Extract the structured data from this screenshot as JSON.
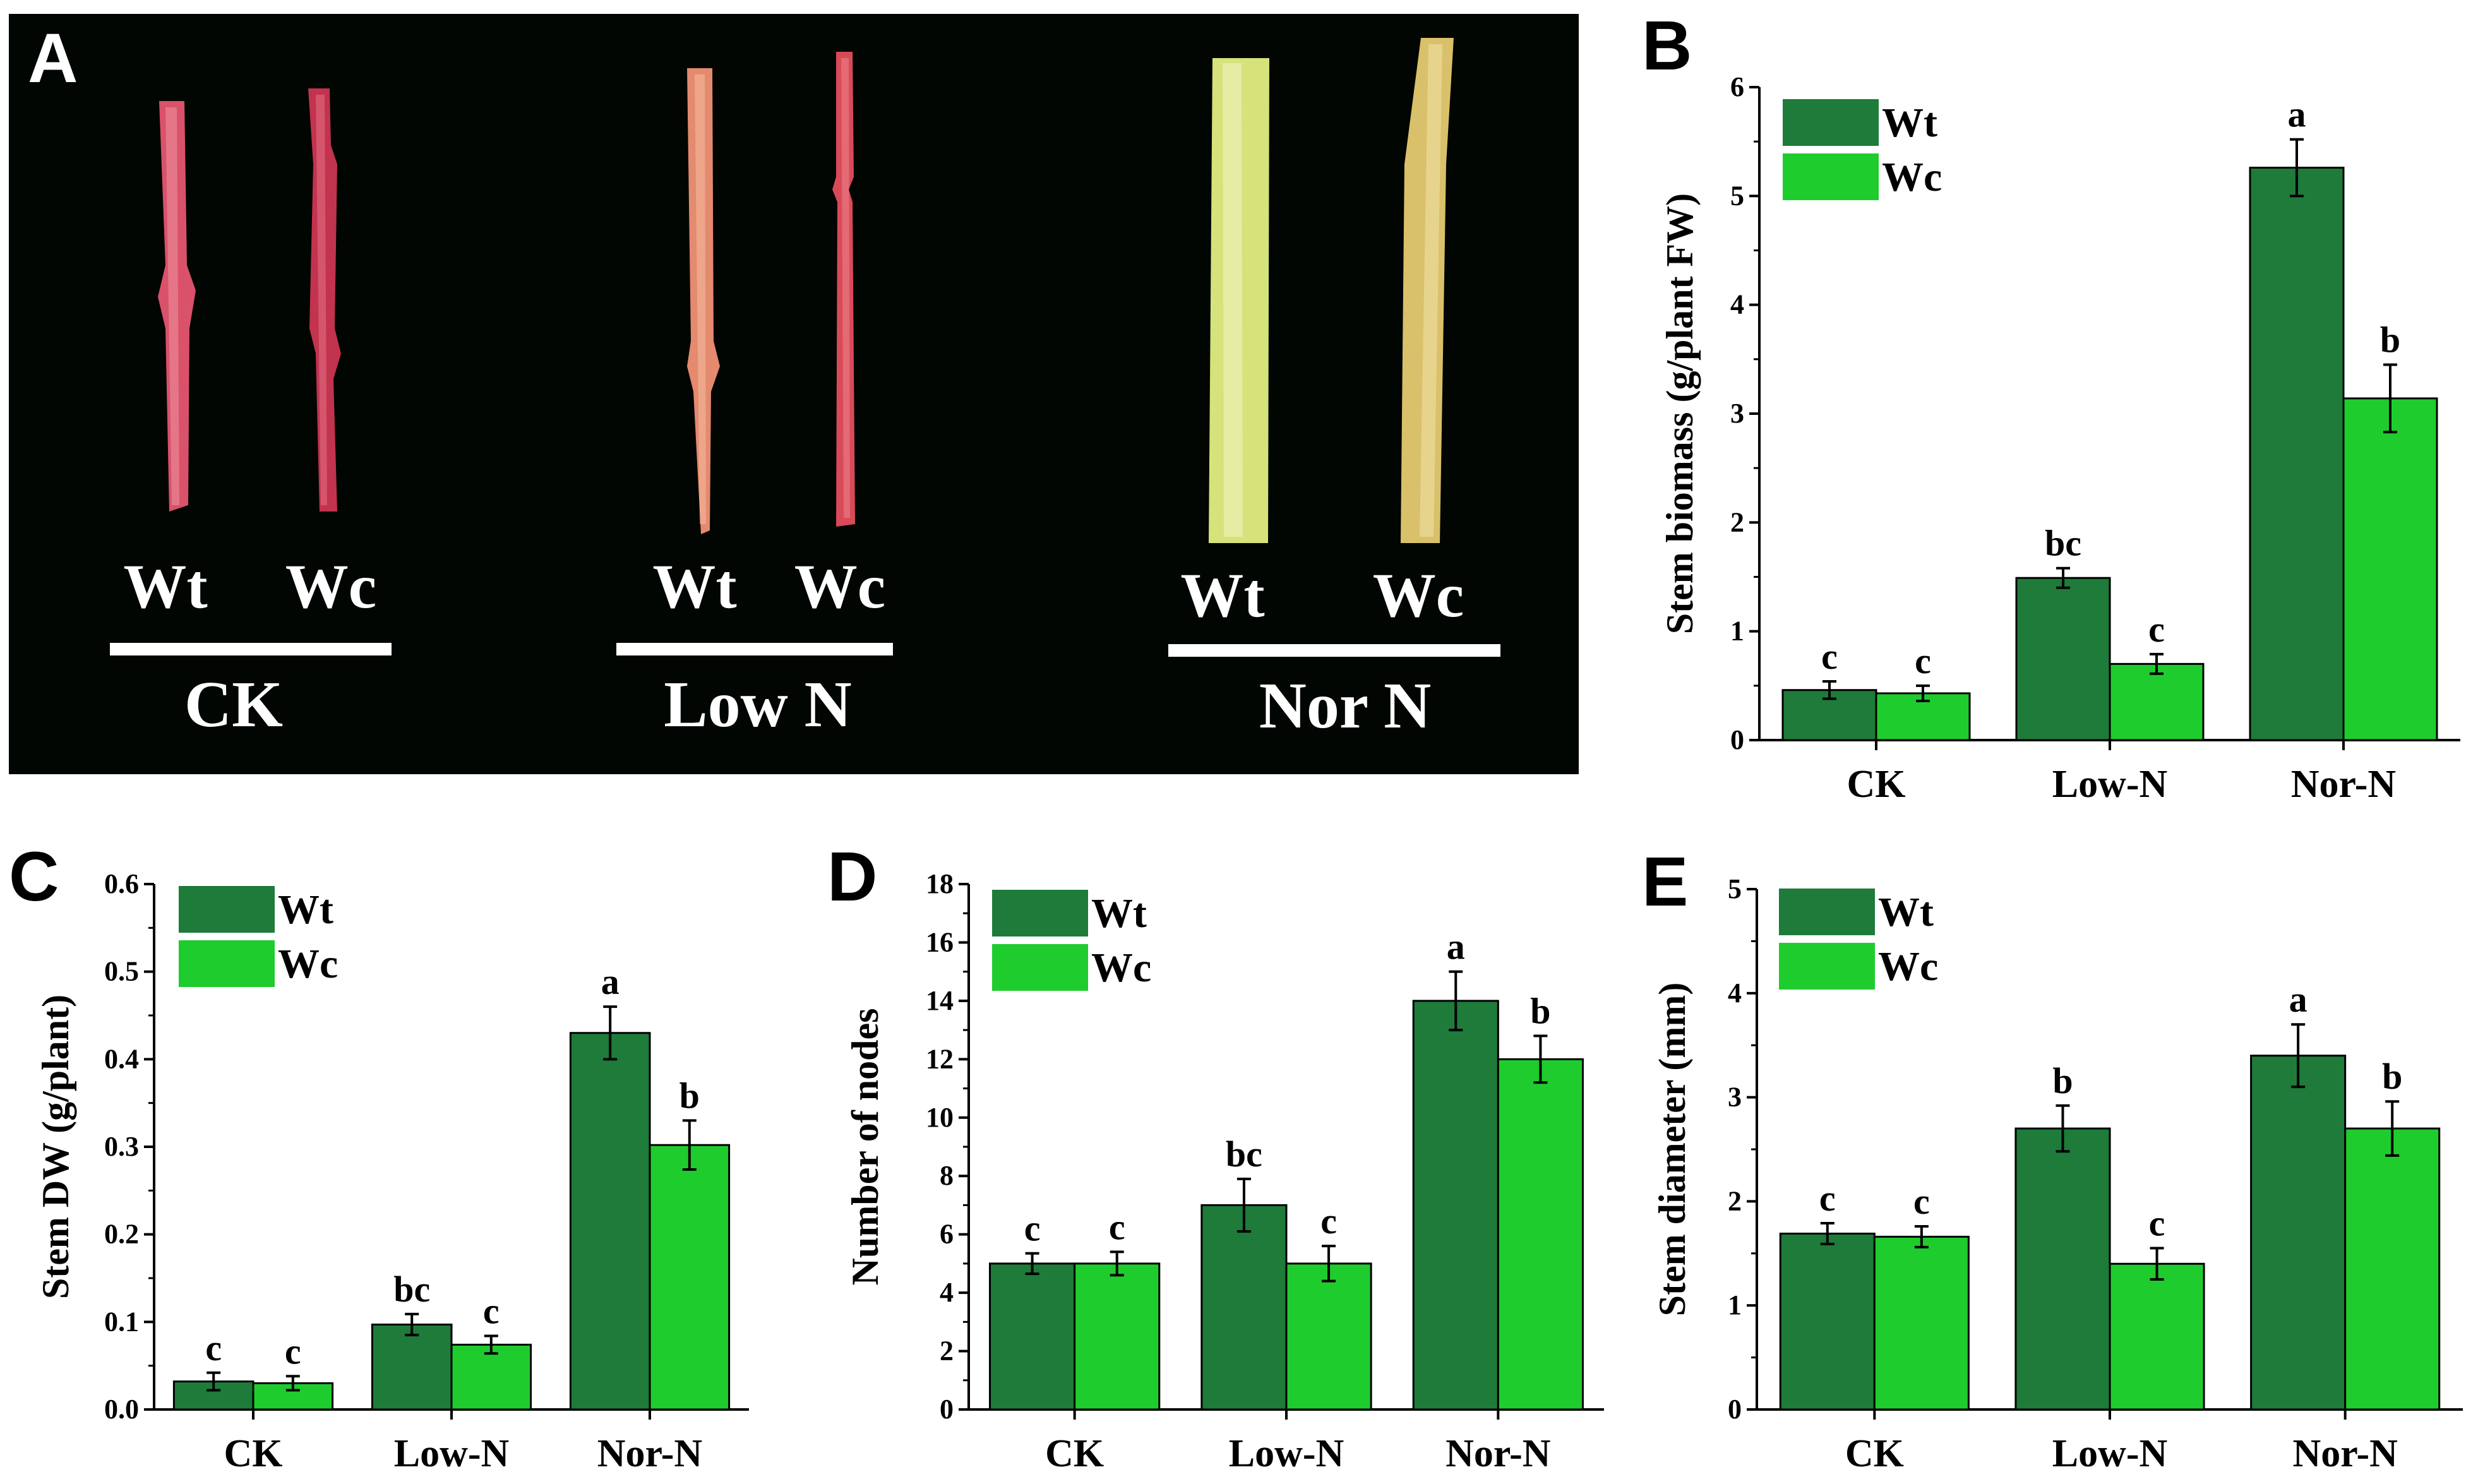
{
  "colors": {
    "wt": "#1E7B3A",
    "wc": "#1FCC2E",
    "photo_bg": "#010603",
    "photo_text": "#ffffff"
  },
  "photo": {
    "panel": "A",
    "groups": [
      {
        "name": "CK",
        "labels": [
          "Wt",
          "Wc"
        ]
      },
      {
        "name": "Low N",
        "labels": [
          "Wt",
          "Wc"
        ]
      },
      {
        "name": "Nor N",
        "labels": [
          "Wt",
          "Wc"
        ]
      }
    ]
  },
  "chart_data": [
    {
      "panel": "B",
      "type": "bar",
      "categories": [
        "CK",
        "Low-N",
        "Nor-N"
      ],
      "ylabel": "Stem biomass (g/plant FW)",
      "ylim": [
        0,
        6
      ],
      "yticks": [
        "0",
        "1",
        "2",
        "3",
        "4",
        "5",
        "6"
      ],
      "ytick_values": [
        0,
        1,
        2,
        3,
        4,
        5,
        6
      ],
      "series": [
        {
          "name": "Wt",
          "values": [
            0.46,
            1.49,
            5.26
          ],
          "errors": [
            0.08,
            0.09,
            0.26
          ],
          "letters": [
            "c",
            "bc",
            "a"
          ]
        },
        {
          "name": "Wc",
          "values": [
            0.43,
            0.7,
            3.14
          ],
          "errors": [
            0.07,
            0.09,
            0.31
          ],
          "letters": [
            "c",
            "c",
            "b"
          ]
        }
      ]
    },
    {
      "panel": "C",
      "type": "bar",
      "categories": [
        "CK",
        "Low-N",
        "Nor-N"
      ],
      "ylabel": "Stem DW (g/plant)",
      "ylim": [
        0,
        0.6
      ],
      "yticks": [
        "0.0",
        "0.1",
        "0.2",
        "0.3",
        "0.4",
        "0.5",
        "0.6"
      ],
      "ytick_values": [
        0,
        0.1,
        0.2,
        0.3,
        0.4,
        0.5,
        0.6
      ],
      "series": [
        {
          "name": "Wt",
          "values": [
            0.032,
            0.097,
            0.43
          ],
          "errors": [
            0.01,
            0.012,
            0.03
          ],
          "letters": [
            "c",
            "bc",
            "a"
          ]
        },
        {
          "name": "Wc",
          "values": [
            0.03,
            0.074,
            0.302
          ],
          "errors": [
            0.008,
            0.01,
            0.028
          ],
          "letters": [
            "c",
            "c",
            "b"
          ]
        }
      ]
    },
    {
      "panel": "D",
      "type": "bar",
      "categories": [
        "CK",
        "Low-N",
        "Nor-N"
      ],
      "ylabel": "Number of nodes",
      "ylim": [
        0,
        18
      ],
      "yticks": [
        "0",
        "2",
        "4",
        "6",
        "8",
        "10",
        "12",
        "14",
        "16",
        "18"
      ],
      "ytick_values": [
        0,
        2,
        4,
        6,
        8,
        10,
        12,
        14,
        16,
        18
      ],
      "series": [
        {
          "name": "Wt",
          "values": [
            5.0,
            7.0,
            14.0
          ],
          "errors": [
            0.35,
            0.9,
            1.0
          ],
          "letters": [
            "c",
            "bc",
            "a"
          ]
        },
        {
          "name": "Wc",
          "values": [
            5.0,
            5.0,
            12.0
          ],
          "errors": [
            0.4,
            0.6,
            0.8
          ],
          "letters": [
            "c",
            "c",
            "b"
          ]
        }
      ]
    },
    {
      "panel": "E",
      "type": "bar",
      "categories": [
        "CK",
        "Low-N",
        "Nor-N"
      ],
      "ylabel": "Stem diameter (mm)",
      "ylim": [
        0,
        5
      ],
      "yticks": [
        "0",
        "1",
        "2",
        "3",
        "4",
        "5"
      ],
      "ytick_values": [
        0,
        1,
        2,
        3,
        4,
        5
      ],
      "series": [
        {
          "name": "Wt",
          "values": [
            1.69,
            2.7,
            3.4
          ],
          "errors": [
            0.1,
            0.22,
            0.3
          ],
          "letters": [
            "c",
            "b",
            "a"
          ]
        },
        {
          "name": "Wc",
          "values": [
            1.66,
            1.4,
            2.7
          ],
          "errors": [
            0.1,
            0.15,
            0.26
          ],
          "letters": [
            "c",
            "c",
            "b"
          ]
        }
      ]
    }
  ]
}
